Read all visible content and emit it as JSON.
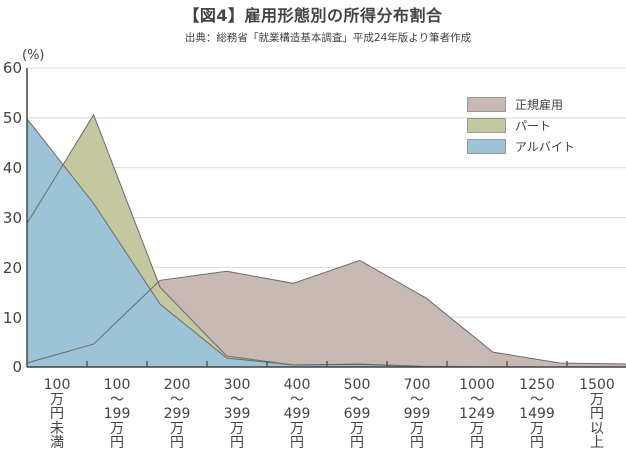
{
  "header": {
    "title": "【図4】雇用形態別の所得分布割合",
    "subtitle": "出典：総務省「就業構造基本調査」平成24年版より筆者作成"
  },
  "axes": {
    "y_unit": "(%)",
    "y_ticks": [
      "60",
      "50",
      "40",
      "30",
      "20",
      "10",
      "0"
    ]
  },
  "legend": [
    {
      "label": "正規雇用",
      "color": "#c9b9b4"
    },
    {
      "label": "パート",
      "color": "#c4c7a0"
    },
    {
      "label": "アルバイト",
      "color": "#9cc3d6"
    }
  ],
  "x_labels": [
    "100\n万\n円\n未\n満",
    "100\n〜\n199\n万\n円",
    "200\n〜\n299\n万\n円",
    "300\n〜\n399\n万\n円",
    "400\n〜\n499\n万\n円",
    "500\n〜\n699\n万\n円",
    "700\n〜\n999\n万\n円",
    "1000\n〜\n1249\n万\n円",
    "1250\n〜\n1499\n万\n円",
    "1500\n万\n円\n以\n上"
  ],
  "chart_data": {
    "type": "area",
    "title": "【図4】雇用形態別の所得分布割合",
    "subtitle": "出典：総務省「就業構造基本調査」平成24年版より筆者作成",
    "xlabel": "",
    "ylabel": "(%)",
    "ylim": [
      0,
      60
    ],
    "yticks": [
      0,
      10,
      20,
      30,
      40,
      50,
      60
    ],
    "grid": true,
    "legend_position": "upper right",
    "categories": [
      "100万円未満",
      "100〜199万円",
      "200〜299万円",
      "300〜399万円",
      "400〜499万円",
      "500〜699万円",
      "700〜999万円",
      "1000〜1249万円",
      "1250〜1499万円",
      "1500万円以上"
    ],
    "series": [
      {
        "name": "正規雇用",
        "color": "#c9b9b4",
        "values": [
          0.8,
          4.6,
          17.4,
          19.2,
          16.8,
          21.4,
          13.8,
          3.0,
          0.8,
          0.6
        ]
      },
      {
        "name": "パート",
        "color": "#c4c7a0",
        "values": [
          28.8,
          50.6,
          16.0,
          2.2,
          0.4,
          0.6,
          0.1,
          0.0,
          0.0,
          0.0
        ]
      },
      {
        "name": "アルバイト",
        "color": "#9cc3d6",
        "values": [
          49.8,
          32.8,
          12.6,
          1.8,
          0.4,
          0.5,
          0.1,
          0.0,
          0.0,
          0.0
        ]
      }
    ]
  }
}
